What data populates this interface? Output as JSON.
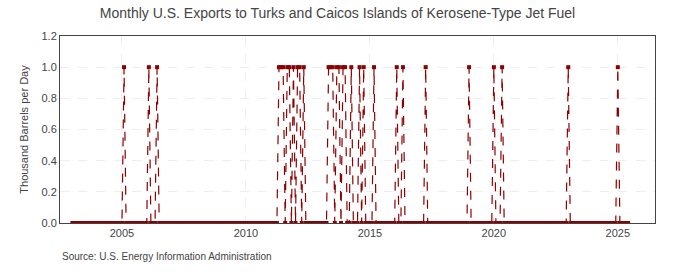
{
  "chart_data": {
    "type": "line",
    "title": "Monthly U.S. Exports to Turks and Caicos Islands of Kerosene-Type Jet Fuel",
    "ylabel": "Thousand Barrels per Day",
    "annotations": [
      {
        "text": "Source: U.S. Energy Information Administration"
      }
    ],
    "color": "#8b0000",
    "marker": "square",
    "line_style": "dashed",
    "grid": true,
    "xlim": [
      2002.5,
      2026.5
    ],
    "xticks": [
      2005,
      2010,
      2015,
      2020,
      2025
    ],
    "ylim": [
      0,
      1.2
    ],
    "yticks": [
      {
        "value": 0,
        "label": "0.0"
      },
      0.2,
      0.4,
      0.6,
      0.8,
      {
        "value": 1,
        "label": "1.0"
      },
      1.2
    ],
    "x": [
      2003,
      2003.083333,
      2003.166667,
      2003.25,
      2003.333333,
      2003.416667,
      2003.5,
      2003.583333,
      2003.666667,
      2003.75,
      2003.833333,
      2003.916667,
      2004,
      2004.083333,
      2004.166667,
      2004.25,
      2004.333333,
      2004.416667,
      2004.5,
      2004.583333,
      2004.666667,
      2004.75,
      2004.833333,
      2004.916667,
      2005,
      2005.083333,
      2005.166667,
      2005.25,
      2005.333333,
      2005.416667,
      2005.5,
      2005.583333,
      2005.666667,
      2005.75,
      2005.833333,
      2005.916667,
      2006,
      2006.083333,
      2006.166667,
      2006.25,
      2006.333333,
      2006.416667,
      2006.5,
      2006.583333,
      2006.666667,
      2006.75,
      2006.833333,
      2006.916667,
      2007,
      2007.083333,
      2007.166667,
      2007.25,
      2007.333333,
      2007.416667,
      2007.5,
      2007.583333,
      2007.666667,
      2007.75,
      2007.833333,
      2007.916667,
      2008,
      2008.083333,
      2008.166667,
      2008.25,
      2008.333333,
      2008.416667,
      2008.5,
      2008.583333,
      2008.666667,
      2008.75,
      2008.833333,
      2008.916667,
      2009,
      2009.083333,
      2009.166667,
      2009.25,
      2009.333333,
      2009.416667,
      2009.5,
      2009.583333,
      2009.666667,
      2009.75,
      2009.833333,
      2009.916667,
      2010,
      2010.083333,
      2010.166667,
      2010.25,
      2010.333333,
      2010.416667,
      2010.5,
      2010.583333,
      2010.666667,
      2010.75,
      2010.833333,
      2010.916667,
      2011,
      2011.083333,
      2011.166667,
      2011.25,
      2011.333333,
      2011.416667,
      2011.5,
      2011.583333,
      2011.666667,
      2011.75,
      2011.833333,
      2011.916667,
      2012,
      2012.083333,
      2012.166667,
      2012.25,
      2012.333333,
      2012.416667,
      2012.5,
      2012.583333,
      2012.666667,
      2012.75,
      2012.833333,
      2012.916667,
      2013,
      2013.083333,
      2013.166667,
      2013.25,
      2013.333333,
      2013.416667,
      2013.5,
      2013.583333,
      2013.666667,
      2013.75,
      2013.833333,
      2013.916667,
      2014,
      2014.083333,
      2014.166667,
      2014.25,
      2014.333333,
      2014.416667,
      2014.5,
      2014.583333,
      2014.666667,
      2014.75,
      2014.833333,
      2014.916667,
      2015,
      2015.083333,
      2015.166667,
      2015.25,
      2015.333333,
      2015.416667,
      2015.5,
      2015.583333,
      2015.666667,
      2015.75,
      2015.833333,
      2015.916667,
      2016,
      2016.083333,
      2016.166667,
      2016.25,
      2016.333333,
      2016.416667,
      2016.5,
      2016.583333,
      2016.666667,
      2016.75,
      2016.833333,
      2016.916667,
      2017,
      2017.083333,
      2017.166667,
      2017.25,
      2017.333333,
      2017.416667,
      2017.5,
      2017.583333,
      2017.666667,
      2017.75,
      2017.833333,
      2017.916667,
      2018,
      2018.083333,
      2018.166667,
      2018.25,
      2018.333333,
      2018.416667,
      2018.5,
      2018.583333,
      2018.666667,
      2018.75,
      2018.833333,
      2018.916667,
      2019,
      2019.083333,
      2019.166667,
      2019.25,
      2019.333333,
      2019.416667,
      2019.5,
      2019.583333,
      2019.666667,
      2019.75,
      2019.833333,
      2019.916667,
      2020,
      2020.083333,
      2020.166667,
      2020.25,
      2020.333333,
      2020.416667,
      2020.5,
      2020.583333,
      2020.666667,
      2020.75,
      2020.833333,
      2020.916667,
      2021,
      2021.083333,
      2021.166667,
      2021.25,
      2021.333333,
      2021.416667,
      2021.5,
      2021.583333,
      2021.666667,
      2021.75,
      2021.833333,
      2021.916667,
      2022,
      2022.083333,
      2022.166667,
      2022.25,
      2022.333333,
      2022.416667,
      2022.5,
      2022.583333,
      2022.666667,
      2022.75,
      2022.833333,
      2022.916667,
      2023,
      2023.083333,
      2023.166667,
      2023.25,
      2023.333333,
      2023.416667,
      2023.5,
      2023.583333,
      2023.666667,
      2023.75,
      2023.833333,
      2023.916667,
      2024,
      2024.083333,
      2024.166667,
      2024.25,
      2024.333333,
      2024.416667,
      2024.5,
      2024.583333,
      2024.666667,
      2024.75,
      2024.833333,
      2024.916667,
      2025,
      2025.083333,
      2025.166667,
      2025.25,
      2025.333333,
      2025.416667
    ],
    "values": [
      0,
      0,
      0,
      0,
      0,
      0,
      0,
      0,
      0,
      0,
      0,
      0,
      0,
      0,
      0,
      0,
      0,
      0,
      0,
      0,
      0,
      0,
      0,
      0,
      0,
      1,
      0,
      0,
      0,
      0,
      0,
      0,
      0,
      0,
      0,
      0,
      0,
      1,
      0,
      0,
      0,
      1,
      0,
      0,
      0,
      0,
      0,
      0,
      0,
      0,
      0,
      0,
      0,
      0,
      0,
      0,
      0,
      0,
      0,
      0,
      0,
      0,
      0,
      0,
      0,
      0,
      0,
      0,
      0,
      0,
      0,
      0,
      0,
      0,
      0,
      0,
      0,
      0,
      0,
      0,
      0,
      0,
      0,
      0,
      0,
      0,
      0,
      0,
      0,
      0,
      0,
      0,
      0,
      0,
      0,
      0,
      0,
      0,
      0,
      0,
      1,
      1,
      1,
      0,
      1,
      1,
      0,
      1,
      0,
      1,
      1,
      0,
      1,
      0,
      0,
      0,
      0,
      0,
      0,
      0,
      0,
      0,
      0,
      0,
      1,
      1,
      1,
      0,
      1,
      1,
      0,
      1,
      1,
      0,
      0,
      1,
      0,
      0,
      0,
      1,
      0,
      1,
      0,
      0,
      0,
      0,
      1,
      0,
      0,
      0,
      0,
      0,
      0,
      0,
      0,
      0,
      0,
      1,
      0,
      0,
      1,
      0,
      0,
      0,
      0,
      0,
      0,
      0,
      0,
      0,
      0,
      1,
      0,
      0,
      0,
      0,
      0,
      0,
      0,
      0,
      0,
      0,
      0,
      0,
      0,
      0,
      0,
      0,
      0,
      0,
      0,
      0,
      1,
      0,
      0,
      0,
      0,
      0,
      0,
      0,
      0,
      0,
      0,
      0,
      1,
      0,
      0,
      0,
      1,
      0,
      0,
      0,
      0,
      0,
      0,
      0,
      0,
      0,
      0,
      0,
      0,
      0,
      0,
      0,
      0,
      0,
      0,
      0,
      0,
      0,
      0,
      0,
      0,
      0,
      0,
      0,
      0,
      0,
      0,
      0,
      1,
      0,
      0,
      0,
      0,
      0,
      0,
      0,
      0,
      0,
      0,
      0,
      0,
      0,
      0,
      0,
      0,
      0,
      0,
      0,
      0,
      0,
      0,
      0,
      1,
      0,
      0,
      0,
      0,
      0
    ]
  }
}
